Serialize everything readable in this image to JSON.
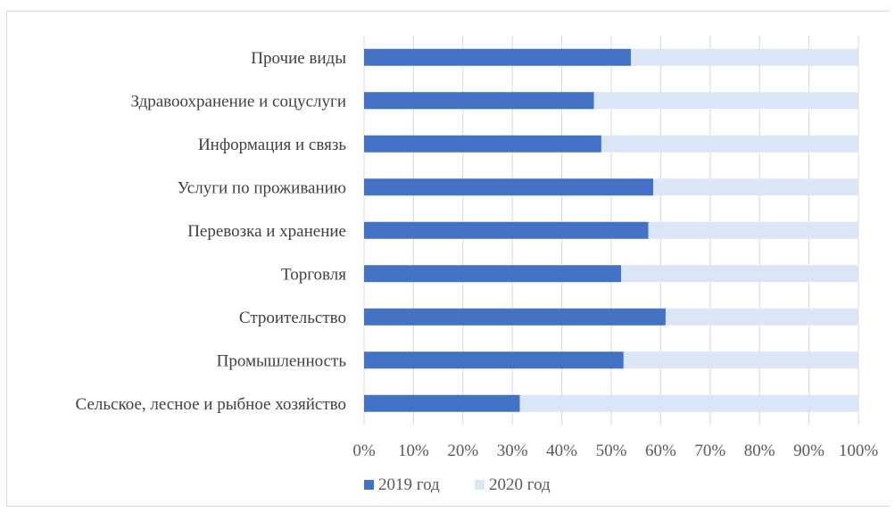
{
  "chart_data": {
    "type": "bar",
    "orientation": "horizontal",
    "stacked": true,
    "percent_stacked": true,
    "categories": [
      "Прочие виды",
      "Здравоохранение и соцуслуги",
      "Информация и связь",
      "Услуги по проживанию",
      "Перевозка и хранение",
      "Торговля",
      "Строительство",
      "Промышленность",
      "Сельское, лесное и рыбное хозяйство"
    ],
    "series": [
      {
        "name": "2019 год",
        "color": "#4472c4",
        "values": [
          54,
          46.5,
          48,
          58.5,
          57.5,
          52,
          61,
          52.5,
          31.5
        ]
      },
      {
        "name": "2020 год",
        "color": "#dae5f5",
        "values": [
          46,
          53.5,
          52,
          41.5,
          42.5,
          48,
          39,
          47.5,
          68.5
        ]
      }
    ],
    "xlim": [
      0,
      100
    ],
    "x_ticks": [
      "0%",
      "10%",
      "20%",
      "30%",
      "40%",
      "50%",
      "60%",
      "70%",
      "80%",
      "90%",
      "100%"
    ],
    "grid": true,
    "legend_position": "bottom",
    "title": "",
    "xlabel": "",
    "ylabel": ""
  }
}
